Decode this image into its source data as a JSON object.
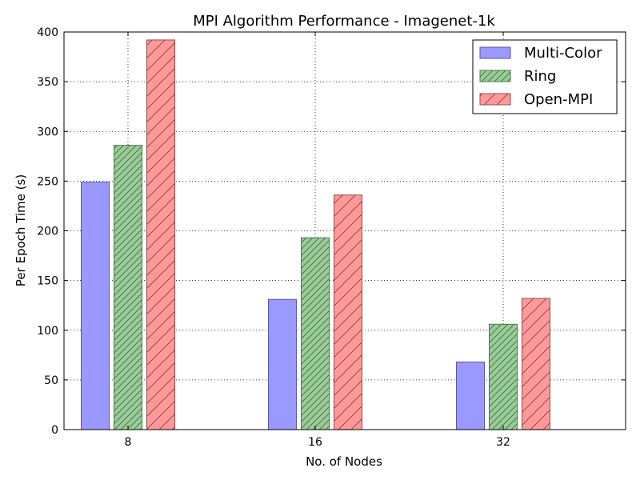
{
  "chart_data": {
    "type": "bar",
    "title": "MPI Algorithm Performance - Imagenet-1k",
    "xlabel": "No. of Nodes",
    "ylabel": "Per Epoch Time (s)",
    "categories": [
      "8",
      "16",
      "32"
    ],
    "ylim": [
      0,
      400
    ],
    "yticks": [
      0,
      50,
      100,
      150,
      200,
      250,
      300,
      350,
      400
    ],
    "grid": true,
    "legend_position": "top-right",
    "series": [
      {
        "name": "Multi-Color",
        "values": [
          249,
          131,
          68
        ],
        "color": "#9999ff",
        "hatch": "none"
      },
      {
        "name": "Ring",
        "values": [
          286,
          193,
          106
        ],
        "color": "#99cc99",
        "hatch": "diagonal-dense"
      },
      {
        "name": "Open-MPI",
        "values": [
          392,
          236,
          132
        ],
        "color": "#ff9999",
        "hatch": "diagonal-sparse"
      }
    ]
  }
}
